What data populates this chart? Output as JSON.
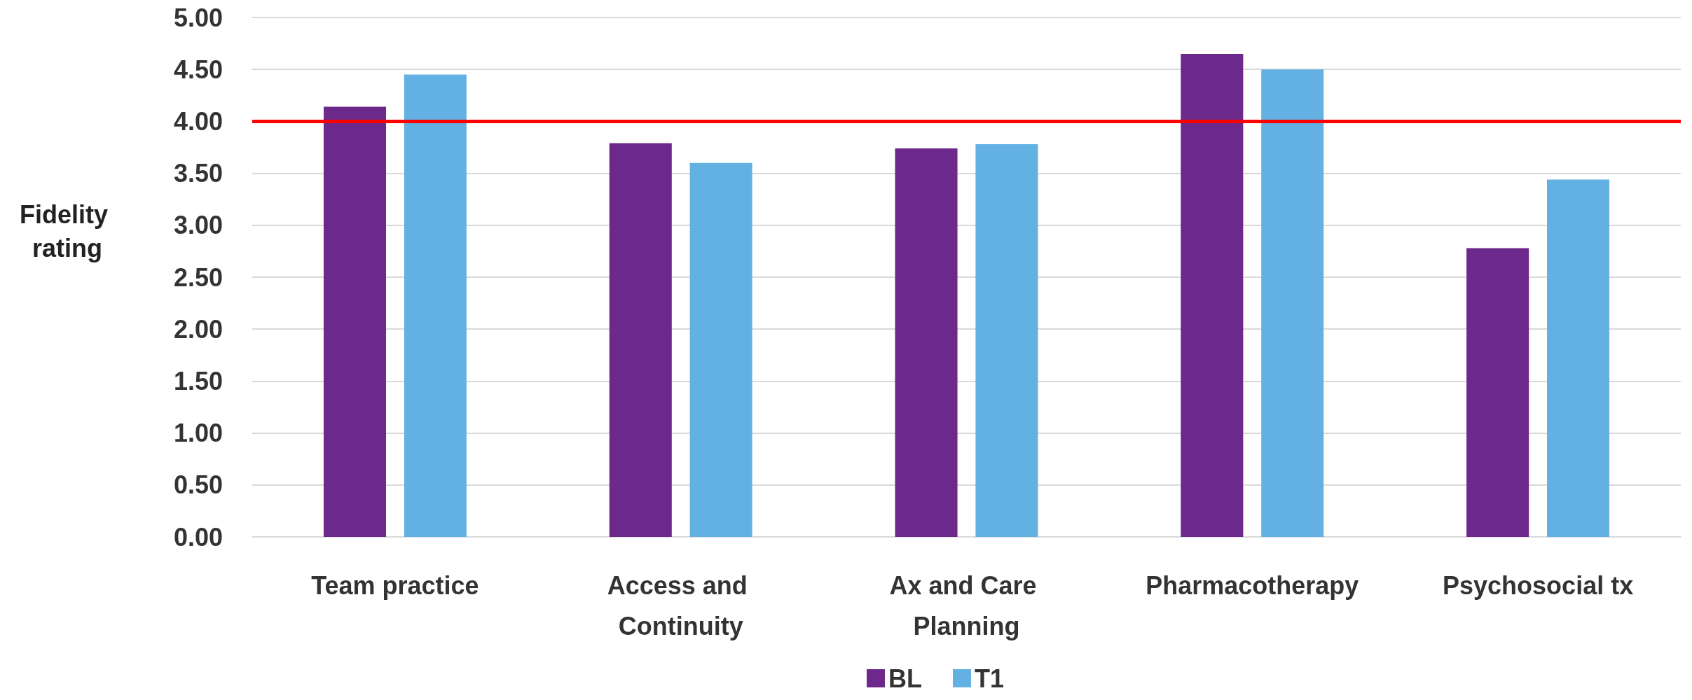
{
  "chart_data": {
    "type": "bar",
    "ylabel": "Fidelity rating",
    "categories": [
      "Team practice",
      "Access and Continuity",
      "Ax and Care Planning",
      "Pharmacotherapy",
      "Psychosocial tx"
    ],
    "series": [
      {
        "name": "BL",
        "color": "#6c288a",
        "values": [
          4.14,
          3.79,
          3.74,
          4.65,
          2.78
        ]
      },
      {
        "name": "T1",
        "color": "#63b0e3",
        "values": [
          4.45,
          3.6,
          3.78,
          4.5,
          3.44
        ]
      }
    ],
    "ylim": [
      0,
      5
    ],
    "yticks": [
      {
        "value": 0,
        "label": "0.00"
      },
      {
        "value": 0.5,
        "label": "0.50"
      },
      {
        "value": 1,
        "label": "1.00"
      },
      {
        "value": 1.5,
        "label": "1.50"
      },
      {
        "value": 2,
        "label": "2.00"
      },
      {
        "value": 2.5,
        "label": "2.50"
      },
      {
        "value": 3,
        "label": "3.00"
      },
      {
        "value": 3.5,
        "label": "3.50"
      },
      {
        "value": 4,
        "label": "4.00"
      },
      {
        "value": 4.5,
        "label": "4.50"
      },
      {
        "value": 5,
        "label": "5.00"
      }
    ],
    "ref_lines": [
      {
        "axis": "y",
        "value": 4,
        "color": "#ff0000",
        "line_style": "solid"
      }
    ],
    "grid": "y",
    "legend": "bottom"
  }
}
